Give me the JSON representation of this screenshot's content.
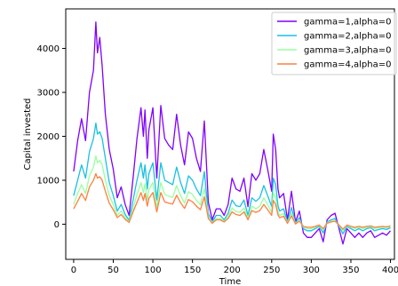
{
  "chart_data": {
    "type": "line",
    "xlabel": "Time",
    "ylabel": "Capital invested",
    "xlim": [
      -10,
      405
    ],
    "ylim": [
      -800,
      4900
    ],
    "xticks": [
      0,
      50,
      100,
      150,
      200,
      250,
      300,
      350,
      400
    ],
    "yticks": [
      0,
      1000,
      2000,
      3000,
      4000
    ],
    "grid": false,
    "legend_position": "top-right",
    "x": [
      0,
      5,
      10,
      15,
      20,
      25,
      28,
      30,
      33,
      36,
      40,
      45,
      50,
      55,
      60,
      65,
      70,
      75,
      80,
      85,
      88,
      90,
      93,
      95,
      100,
      105,
      110,
      115,
      120,
      125,
      130,
      135,
      140,
      145,
      150,
      155,
      160,
      165,
      170,
      175,
      180,
      185,
      190,
      195,
      200,
      205,
      210,
      215,
      220,
      225,
      230,
      235,
      240,
      245,
      250,
      252,
      255,
      258,
      260,
      265,
      270,
      275,
      280,
      285,
      290,
      295,
      300,
      305,
      310,
      315,
      320,
      325,
      330,
      335,
      340,
      345,
      350,
      355,
      360,
      365,
      370,
      375,
      380,
      385,
      390,
      395,
      400
    ],
    "series": [
      {
        "name": "gamma=1,alpha=0",
        "color": "#7f00ff",
        "values": [
          1200,
          1900,
          2400,
          1900,
          3000,
          3500,
          4600,
          3900,
          4250,
          3600,
          2500,
          1700,
          1250,
          600,
          850,
          450,
          200,
          1050,
          1950,
          2650,
          2000,
          2600,
          1500,
          2150,
          2650,
          1050,
          2700,
          1950,
          1800,
          1700,
          2500,
          1800,
          1350,
          2100,
          1950,
          1500,
          1200,
          2350,
          500,
          100,
          350,
          350,
          200,
          450,
          1050,
          800,
          750,
          1050,
          400,
          1150,
          1000,
          1150,
          1700,
          1250,
          750,
          2050,
          1700,
          800,
          600,
          700,
          100,
          750,
          50,
          300,
          -200,
          -300,
          -300,
          -200,
          -100,
          -400,
          100,
          200,
          250,
          -100,
          -450,
          -100,
          -200,
          -300,
          -200,
          -300,
          -200,
          -150,
          -300,
          -250,
          -200,
          -250,
          -150
        ]
      },
      {
        "name": "gamma=2,alpha=0",
        "color": "#19c0e5",
        "values": [
          650,
          1000,
          1350,
          1050,
          1650,
          1950,
          2300,
          2050,
          2100,
          1950,
          1500,
          950,
          650,
          300,
          450,
          220,
          90,
          550,
          1000,
          1400,
          1050,
          1350,
          800,
          1150,
          1400,
          550,
          1400,
          1000,
          950,
          900,
          1300,
          950,
          700,
          1100,
          1000,
          800,
          650,
          1200,
          250,
          50,
          200,
          200,
          100,
          250,
          550,
          420,
          400,
          550,
          200,
          600,
          520,
          600,
          880,
          650,
          400,
          1050,
          900,
          420,
          300,
          350,
          50,
          380,
          20,
          150,
          -100,
          -150,
          -150,
          -100,
          -50,
          -200,
          50,
          100,
          130,
          -50,
          -220,
          -50,
          -100,
          -150,
          -100,
          -150,
          -100,
          -80,
          -150,
          -120,
          -100,
          -120,
          -80
        ]
      },
      {
        "name": "gamma=3,alpha=0",
        "color": "#99ffa0",
        "values": [
          450,
          700,
          900,
          700,
          1100,
          1300,
          1550,
          1400,
          1450,
          1350,
          1000,
          650,
          450,
          200,
          300,
          150,
          60,
          370,
          670,
          950,
          720,
          920,
          550,
          780,
          950,
          380,
          950,
          680,
          640,
          610,
          880,
          650,
          480,
          740,
          680,
          540,
          440,
          820,
          170,
          30,
          130,
          130,
          70,
          170,
          370,
          290,
          270,
          370,
          140,
          410,
          350,
          410,
          600,
          440,
          270,
          720,
          600,
          280,
          200,
          240,
          30,
          260,
          10,
          100,
          -70,
          -100,
          -100,
          -70,
          -30,
          -140,
          30,
          70,
          90,
          -30,
          -150,
          -30,
          -70,
          -100,
          -70,
          -100,
          -70,
          -50,
          -100,
          -80,
          -70,
          -80,
          -50
        ]
      },
      {
        "name": "gamma=4,alpha=0",
        "color": "#ff7f3f",
        "values": [
          350,
          520,
          700,
          540,
          850,
          1000,
          1150,
          1050,
          1080,
          1000,
          750,
          480,
          330,
          150,
          220,
          110,
          40,
          280,
          500,
          720,
          540,
          700,
          410,
          590,
          720,
          280,
          720,
          510,
          480,
          460,
          660,
          490,
          360,
          560,
          510,
          410,
          330,
          620,
          130,
          20,
          100,
          100,
          50,
          130,
          280,
          220,
          200,
          280,
          100,
          310,
          270,
          310,
          450,
          330,
          200,
          540,
          450,
          210,
          150,
          180,
          20,
          190,
          5,
          70,
          -50,
          -70,
          -70,
          -50,
          -20,
          -100,
          20,
          50,
          70,
          -20,
          -110,
          -20,
          -50,
          -70,
          -50,
          -70,
          -50,
          -40,
          -70,
          -60,
          -50,
          -60,
          -40
        ]
      }
    ]
  }
}
